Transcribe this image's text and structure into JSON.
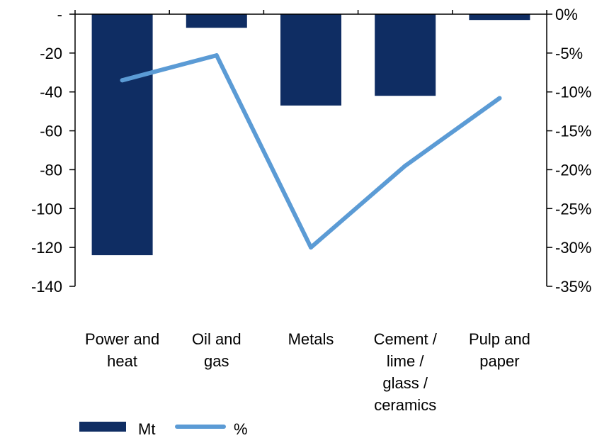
{
  "chart_data": {
    "type": "bar",
    "categories": [
      [
        "Power and",
        "heat"
      ],
      [
        "Oil and",
        "gas"
      ],
      [
        "Metals"
      ],
      [
        "Cement /",
        "lime /",
        "glass /",
        "ceramics"
      ],
      [
        "Pulp and",
        "paper"
      ]
    ],
    "series": [
      {
        "name": "Mt",
        "kind": "bar",
        "axis": "left",
        "color": "#0f2d63",
        "values": [
          -124,
          -7,
          -47,
          -42,
          -3
        ]
      },
      {
        "name": "%",
        "kind": "line",
        "axis": "right",
        "color": "#5b9bd5",
        "values": [
          -8.5,
          -5.3,
          -30,
          -19.5,
          -10.8
        ]
      }
    ],
    "left_axis": {
      "ylim": [
        -140,
        0
      ],
      "ticks": [
        {
          "value": 0,
          "label": "-"
        },
        {
          "value": -20,
          "label": "-20"
        },
        {
          "value": -40,
          "label": "-40"
        },
        {
          "value": -60,
          "label": "-60"
        },
        {
          "value": -80,
          "label": "-80"
        },
        {
          "value": -100,
          "label": "-100"
        },
        {
          "value": -120,
          "label": "-120"
        },
        {
          "value": -140,
          "label": "-140"
        }
      ]
    },
    "right_axis": {
      "ylim": [
        -35,
        0
      ],
      "ticks": [
        {
          "value": 0,
          "label": "0%"
        },
        {
          "value": -5,
          "label": "-5%"
        },
        {
          "value": -10,
          "label": "-10%"
        },
        {
          "value": -15,
          "label": "-15%"
        },
        {
          "value": -20,
          "label": "-20%"
        },
        {
          "value": -25,
          "label": "-25%"
        },
        {
          "value": -30,
          "label": "-30%"
        },
        {
          "value": -35,
          "label": "-35%"
        }
      ]
    },
    "grid": false,
    "legend_position": "bottom-left"
  }
}
